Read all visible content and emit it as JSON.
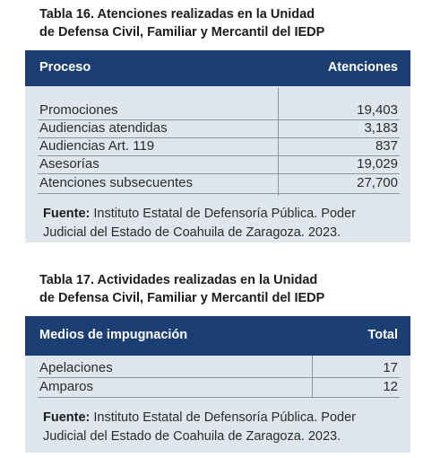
{
  "table16": {
    "caption_line1": "Tabla 16. Atenciones realizadas en la Unidad",
    "caption_line2": "de Defensa Civil, Familiar y Mercantil del IEDP",
    "header_col1": "Proceso",
    "header_col2": "Atenciones",
    "rows": [
      {
        "name": "Promociones",
        "value": "19,403"
      },
      {
        "name": "Audiencias atendidas",
        "value": "3,183"
      },
      {
        "name": "Audiencias Art. 119",
        "value": "837"
      },
      {
        "name": "Asesorías",
        "value": "19,029"
      },
      {
        "name": "Atenciones subsecuentes",
        "value": "27,700"
      }
    ],
    "source_label": "Fuente:",
    "source_line1": " Instituto Estatal de Defensoría Pública. Poder",
    "source_line2": "Judicial del Estado de Coahuila de Zaragoza. 2023."
  },
  "table17": {
    "caption_line1": "Tabla 17. Actividades realizadas en la Unidad",
    "caption_line2": "de Defensa Civil, Familiar y Mercantil del IEDP",
    "header_col1": "Medios de impugnación",
    "header_col2": "Total",
    "rows": [
      {
        "name": "Apelaciones",
        "value": "17"
      },
      {
        "name": "Amparos",
        "value": "12"
      }
    ],
    "source_label": "Fuente:",
    "source_line1": " Instituto Estatal de Defensoría Pública. Poder",
    "source_line2": "Judicial del Estado de Coahuila de Zaragoza. 2023."
  },
  "colors": {
    "header_bg": "#1c3f73",
    "body_bg": "#dfe6ee",
    "rule": "#8a96a3"
  }
}
